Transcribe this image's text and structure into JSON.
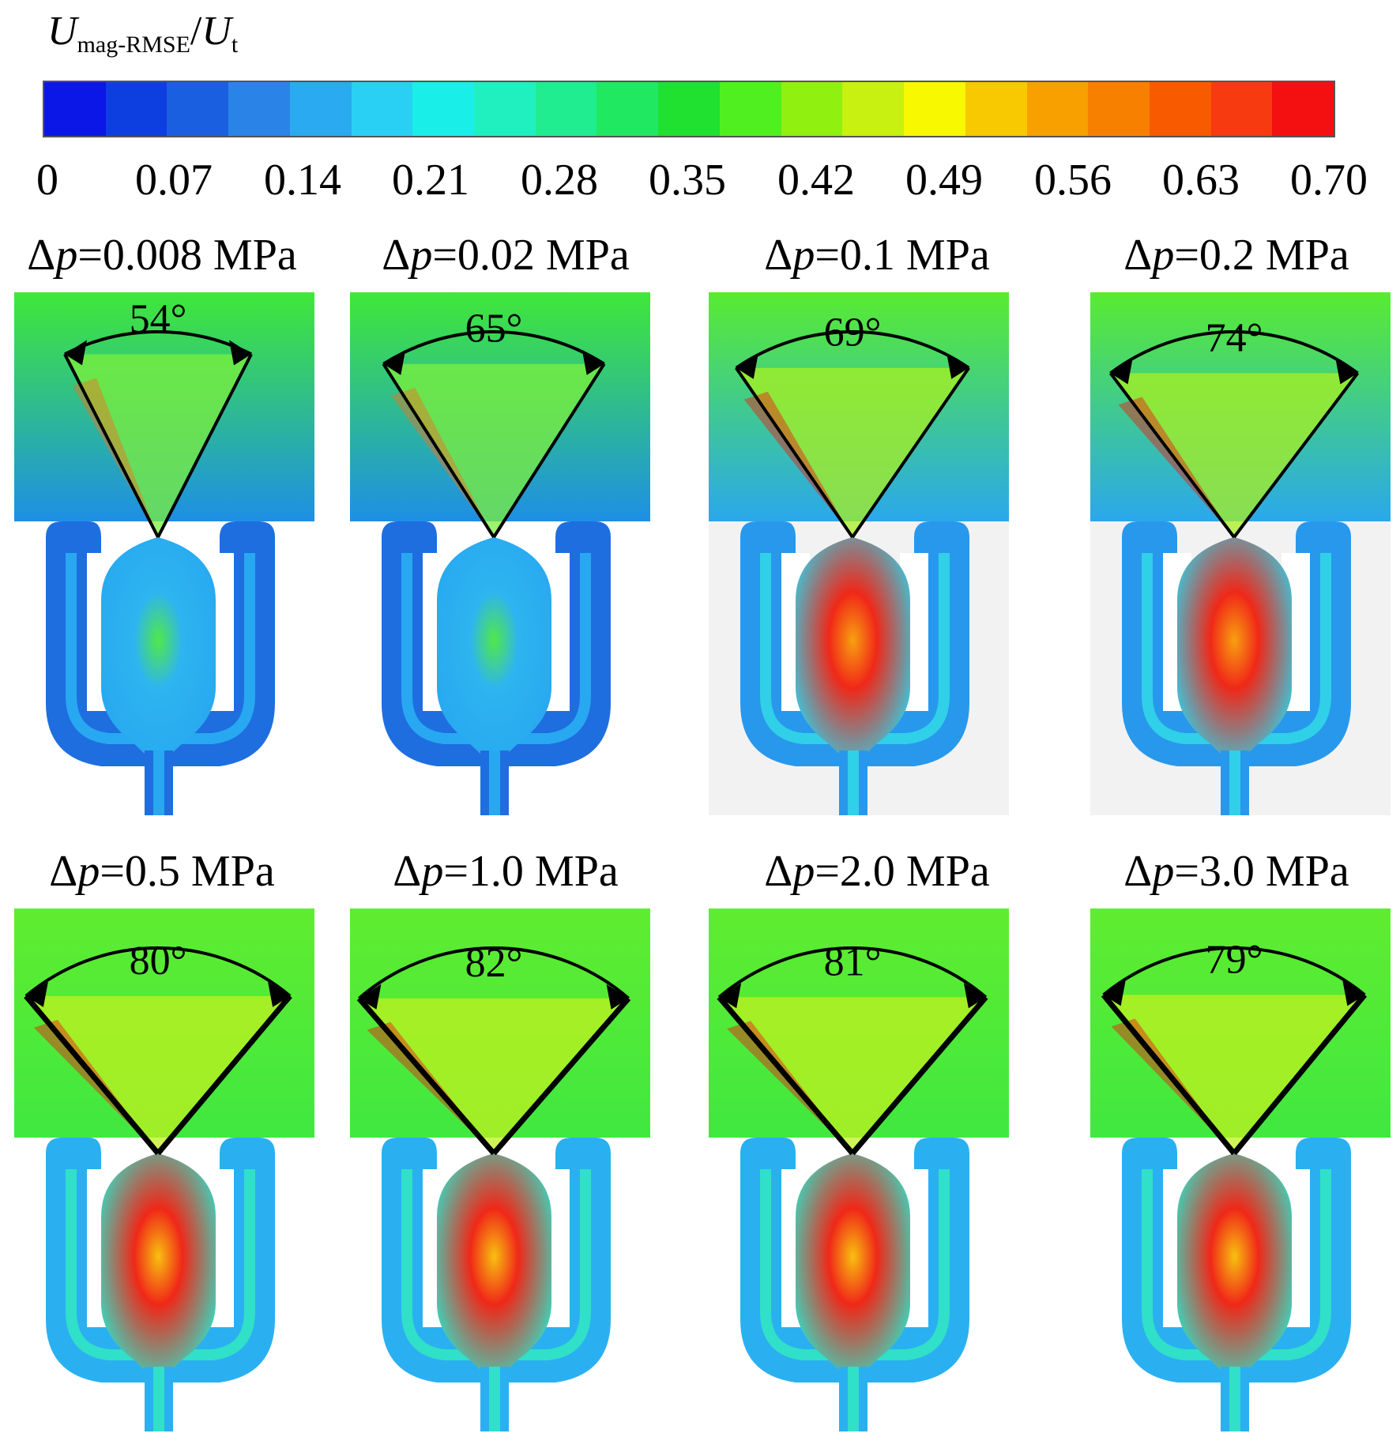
{
  "colorbar": {
    "title_main": "U",
    "title_sub": "mag-RMSE",
    "title_den": "U",
    "title_den_sub": "t",
    "ticks": [
      "0",
      "0.07",
      "0.14",
      "0.21",
      "0.28",
      "0.35",
      "0.42",
      "0.49",
      "0.56",
      "0.63",
      "0.70"
    ],
    "colors": [
      "#0a17e6",
      "#0d3ee0",
      "#1a5fe0",
      "#2a84e8",
      "#2aaaf0",
      "#2ad0f4",
      "#1aeee8",
      "#20f0c0",
      "#20ec90",
      "#20e860",
      "#20e030",
      "#50f020",
      "#90f010",
      "#c8f010",
      "#f8f800",
      "#f8c800",
      "#f8a000",
      "#f88000",
      "#f85a00",
      "#f83a10",
      "#f41010"
    ]
  },
  "panels": [
    {
      "delta": "Δ",
      "p": "p",
      "value": "=0.008 MPa",
      "angle": "54°",
      "theme": "low",
      "angle_deg": 54
    },
    {
      "delta": "Δ",
      "p": "p",
      "value": "=0.02 MPa",
      "angle": "65°",
      "theme": "low",
      "angle_deg": 65
    },
    {
      "delta": "Δ",
      "p": "p",
      "value": "=0.1 MPa",
      "angle": "69°",
      "theme": "mid",
      "angle_deg": 69
    },
    {
      "delta": "Δ",
      "p": "p",
      "value": "=0.2 MPa",
      "angle": "74°",
      "theme": "mid",
      "angle_deg": 74
    },
    {
      "delta": "Δ",
      "p": "p",
      "value": "=0.5 MPa",
      "angle": "80°",
      "theme": "high",
      "angle_deg": 80
    },
    {
      "delta": "Δ",
      "p": "p",
      "value": "=1.0 MPa",
      "angle": "82°",
      "theme": "high",
      "angle_deg": 82
    },
    {
      "delta": "Δ",
      "p": "p",
      "value": "=2.0 MPa",
      "angle": "81°",
      "theme": "high",
      "angle_deg": 81
    },
    {
      "delta": "Δ",
      "p": "p",
      "value": "=3.0 MPa",
      "angle": "79°",
      "theme": "high",
      "angle_deg": 79
    }
  ]
}
